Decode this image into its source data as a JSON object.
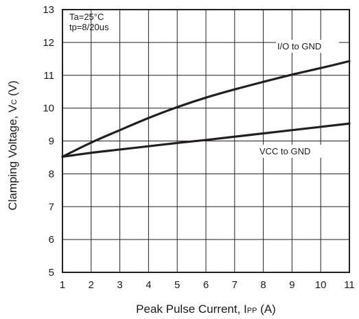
{
  "chart_data": {
    "type": "line",
    "xlabel": "Peak Pulse Current, I",
    "xlabel_sub": "PP",
    "xlabel_unit": " (A)",
    "ylabel": "Clamping Voltage, V",
    "ylabel_sub": "C",
    "ylabel_unit": " (V)",
    "xlim": [
      1,
      11
    ],
    "ylim": [
      5,
      13
    ],
    "x_ticks": [
      1,
      2,
      3,
      4,
      5,
      6,
      7,
      8,
      9,
      10,
      11
    ],
    "y_ticks": [
      5,
      6,
      7,
      8,
      9,
      10,
      11,
      12,
      13
    ],
    "grid": true,
    "conditions": [
      "Ta=25°C",
      "tp=8/20us"
    ],
    "series": [
      {
        "name": "I/O to GND",
        "x": [
          1,
          2,
          3,
          4,
          5,
          6,
          7,
          8,
          9,
          10,
          11
        ],
        "y": [
          8.52,
          8.95,
          9.33,
          9.7,
          10.03,
          10.32,
          10.57,
          10.8,
          11.02,
          11.22,
          11.43
        ]
      },
      {
        "name": "VCC to GND",
        "x": [
          1,
          2,
          3,
          4,
          5,
          6,
          7,
          8,
          9,
          10,
          11
        ],
        "y": [
          8.52,
          8.64,
          8.74,
          8.84,
          8.94,
          9.03,
          9.13,
          9.23,
          9.33,
          9.43,
          9.53
        ]
      }
    ],
    "colors": {
      "line": "#231f20",
      "grid": "#231f20",
      "text": "#1a1a1a"
    }
  }
}
